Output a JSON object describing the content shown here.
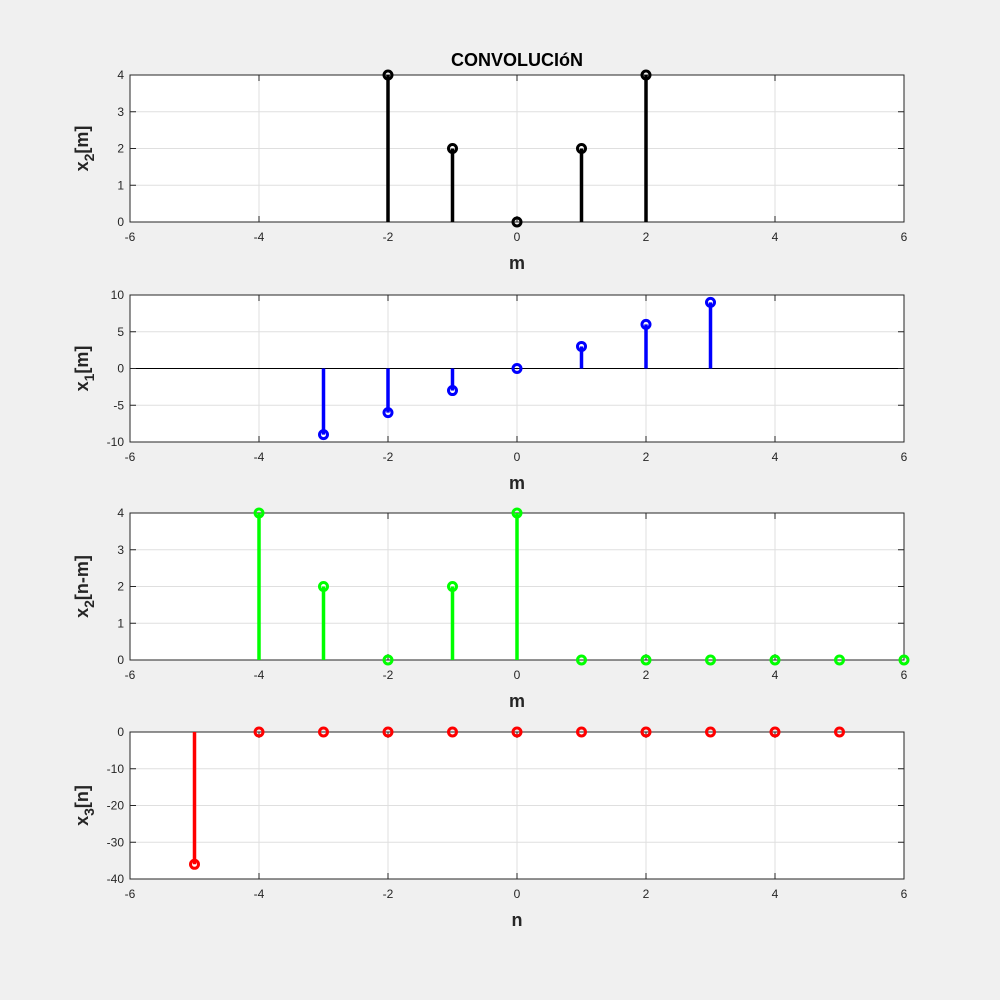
{
  "chart_data": [
    {
      "type": "stem",
      "title": "CONVOLUCIóN",
      "xlabel": "m",
      "ylabel": {
        "base": "x",
        "sub": "2",
        "rest": "[m]"
      },
      "xlim": [
        -6,
        6
      ],
      "ylim": [
        0,
        4
      ],
      "xticks": [
        -6,
        -4,
        -2,
        0,
        2,
        4,
        6
      ],
      "yticks": [
        0,
        1,
        2,
        3,
        4
      ],
      "grid": true,
      "color": "#000000",
      "x": [
        -2,
        -1,
        0,
        1,
        2
      ],
      "y": [
        4,
        2,
        0,
        2,
        4
      ]
    },
    {
      "type": "stem",
      "title": "",
      "xlabel": "m",
      "ylabel": {
        "base": "x",
        "sub": "1",
        "rest": "[m]"
      },
      "xlim": [
        -6,
        6
      ],
      "ylim": [
        -10,
        10
      ],
      "xticks": [
        -6,
        -4,
        -2,
        0,
        2,
        4,
        6
      ],
      "yticks": [
        -10,
        -5,
        0,
        5,
        10
      ],
      "grid": true,
      "color": "#0000ff",
      "x": [
        -3,
        -2,
        -1,
        0,
        1,
        2,
        3
      ],
      "y": [
        -9,
        -6,
        -3,
        0,
        3,
        6,
        9
      ]
    },
    {
      "type": "stem",
      "title": "",
      "xlabel": "m",
      "ylabel": {
        "base": "x",
        "sub": "2",
        "rest": "[n-m]"
      },
      "xlim": [
        -6,
        6
      ],
      "ylim": [
        0,
        4
      ],
      "xticks": [
        -6,
        -4,
        -2,
        0,
        2,
        4,
        6
      ],
      "yticks": [
        0,
        1,
        2,
        3,
        4
      ],
      "grid": true,
      "color": "#00ff00",
      "x": [
        -4,
        -3,
        -2,
        -1,
        0,
        1,
        2,
        3,
        4,
        5,
        6
      ],
      "y": [
        4,
        2,
        0,
        2,
        4,
        0,
        0,
        0,
        0,
        0,
        0
      ]
    },
    {
      "type": "stem",
      "title": "",
      "xlabel": "n",
      "ylabel": {
        "base": "x",
        "sub": "3",
        "rest": "[n]"
      },
      "xlim": [
        -6,
        6
      ],
      "ylim": [
        -40,
        0
      ],
      "xticks": [
        -6,
        -4,
        -2,
        0,
        2,
        4,
        6
      ],
      "yticks": [
        -40,
        -30,
        -20,
        -10,
        0
      ],
      "grid": true,
      "color": "#ff0000",
      "x": [
        -5,
        -4,
        -3,
        -2,
        -1,
        0,
        1,
        2,
        3,
        4,
        5
      ],
      "y": [
        -36,
        0,
        0,
        0,
        0,
        0,
        0,
        0,
        0,
        0,
        0
      ]
    }
  ]
}
